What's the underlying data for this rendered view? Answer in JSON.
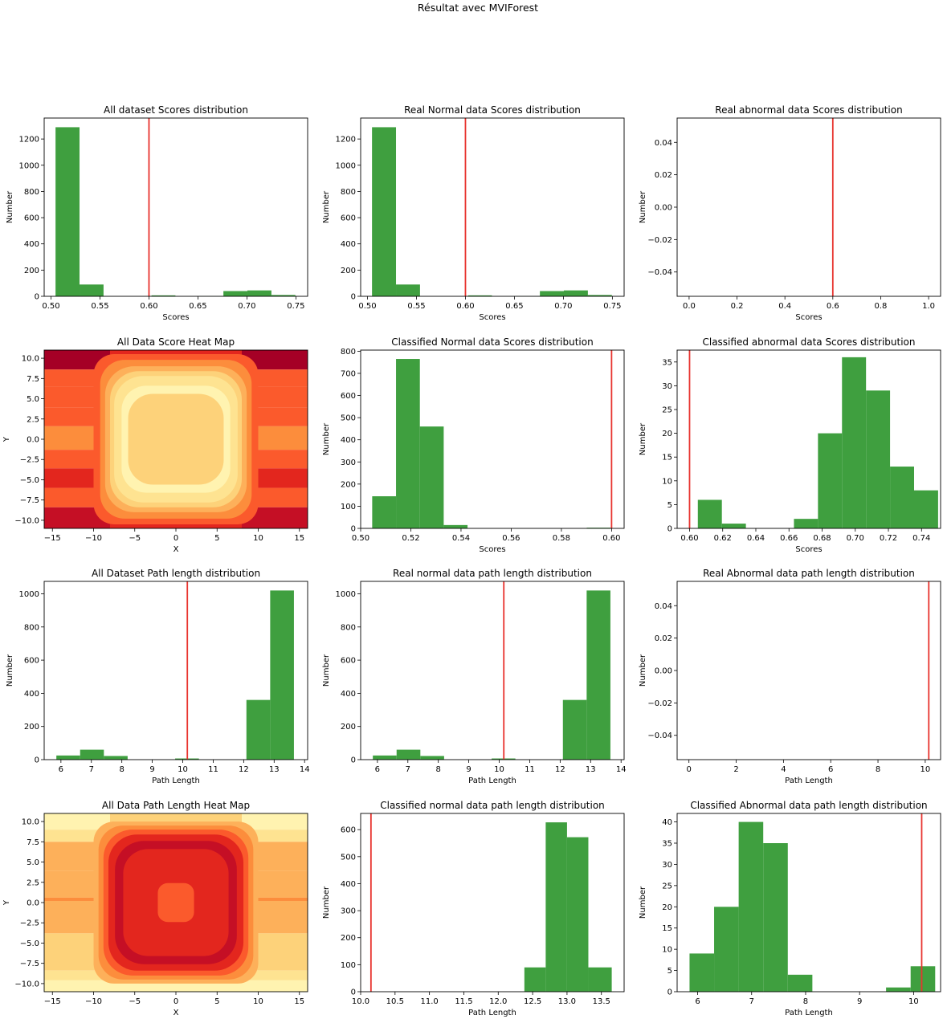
{
  "figure": {
    "suptitle": "Résultat avec MVIForest"
  },
  "colors": {
    "bar": "#3f9f3f",
    "threshold": "#e8332e",
    "heat_low": "#fff9c4",
    "heat_high": "#a50026"
  },
  "chart_data": [
    {
      "id": "all-scores",
      "type": "bar",
      "title": "All dataset Scores distribution",
      "xlabel": "Scores",
      "ylabel": "Number",
      "xlim": [
        0.493,
        0.762
      ],
      "ylim": [
        0,
        1360
      ],
      "xticks": [
        0.5,
        0.55,
        0.6,
        0.65,
        0.7,
        0.75
      ],
      "xtick_labels": [
        "0.50",
        "0.55",
        "0.60",
        "0.65",
        "0.70",
        "0.75"
      ],
      "yticks": [
        0,
        200,
        400,
        600,
        800,
        1000,
        1200
      ],
      "ytick_labels": [
        "0",
        "200",
        "400",
        "600",
        "800",
        "1000",
        "1200"
      ],
      "bins": [
        [
          0.5046,
          0.5291,
          1290
        ],
        [
          0.5291,
          0.5536,
          90
        ],
        [
          0.5536,
          0.5781,
          0
        ],
        [
          0.5781,
          0.6026,
          0
        ],
        [
          0.6026,
          0.627,
          7
        ],
        [
          0.627,
          0.6515,
          0
        ],
        [
          0.6515,
          0.676,
          2
        ],
        [
          0.676,
          0.7005,
          40
        ],
        [
          0.7005,
          0.725,
          45
        ],
        [
          0.725,
          0.7495,
          10
        ]
      ],
      "threshold": 0.6
    },
    {
      "id": "real-normal-scores",
      "type": "bar",
      "title": "Real Normal data Scores distribution",
      "xlabel": "Scores",
      "ylabel": "Number",
      "xlim": [
        0.493,
        0.762
      ],
      "ylim": [
        0,
        1360
      ],
      "xticks": [
        0.5,
        0.55,
        0.6,
        0.65,
        0.7,
        0.75
      ],
      "xtick_labels": [
        "0.50",
        "0.55",
        "0.60",
        "0.65",
        "0.70",
        "0.75"
      ],
      "yticks": [
        0,
        200,
        400,
        600,
        800,
        1000,
        1200
      ],
      "ytick_labels": [
        "0",
        "200",
        "400",
        "600",
        "800",
        "1000",
        "1200"
      ],
      "bins": [
        [
          0.5046,
          0.5291,
          1290
        ],
        [
          0.5291,
          0.5536,
          90
        ],
        [
          0.5536,
          0.5781,
          0
        ],
        [
          0.5781,
          0.6026,
          0
        ],
        [
          0.6026,
          0.627,
          7
        ],
        [
          0.627,
          0.6515,
          0
        ],
        [
          0.6515,
          0.676,
          2
        ],
        [
          0.676,
          0.7005,
          40
        ],
        [
          0.7005,
          0.725,
          45
        ],
        [
          0.725,
          0.7495,
          10
        ]
      ],
      "threshold": 0.6
    },
    {
      "id": "real-abnormal-scores",
      "type": "bar",
      "title": "Real abnormal data Scores distribution",
      "xlabel": "Scores",
      "ylabel": "Number",
      "xlim": [
        -0.05,
        1.05
      ],
      "ylim": [
        -0.055,
        0.055
      ],
      "xticks": [
        0.0,
        0.2,
        0.4,
        0.6,
        0.8,
        1.0
      ],
      "xtick_labels": [
        "0.0",
        "0.2",
        "0.4",
        "0.6",
        "0.8",
        "1.0"
      ],
      "yticks": [
        -0.04,
        -0.02,
        0.0,
        0.02,
        0.04
      ],
      "ytick_labels": [
        "−0.04",
        "−0.02",
        "0.00",
        "0.02",
        "0.04"
      ],
      "bins": [],
      "threshold": 0.6
    },
    {
      "id": "all-score-heatmap",
      "type": "heatmap",
      "title": "All Data Score Heat Map",
      "xlabel": "X",
      "ylabel": "Y",
      "xlim": [
        -16,
        16
      ],
      "ylim": [
        -11,
        11
      ],
      "xticks": [
        -15,
        -10,
        -5,
        0,
        5,
        10,
        15
      ],
      "xtick_labels": [
        "−15",
        "−10",
        "−5",
        "0",
        "5",
        "10",
        "15"
      ],
      "yticks": [
        -10,
        -7.5,
        -5,
        -2.5,
        0,
        2.5,
        5,
        7.5,
        10
      ],
      "ytick_labels": [
        "−10.0",
        "−7.5",
        "−5.0",
        "−2.5",
        "0.0",
        "2.5",
        "5.0",
        "7.5",
        "10.0"
      ],
      "palette": [
        "#fff3b0",
        "#fee391",
        "#fdd27a",
        "#fdb05a",
        "#fc8d3c",
        "#fb5a2c",
        "#e3261e",
        "#c50f25",
        "#a50026"
      ],
      "outer_bands": [
        {
          "y0": 8.6,
          "y1": 11,
          "outer": 8,
          "mid": 6
        },
        {
          "y0": 6.5,
          "y1": 8.6,
          "outer": 5,
          "mid": 5
        },
        {
          "y0": 3.9,
          "y1": 6.5,
          "outer": 5,
          "mid": 4
        },
        {
          "y0": 1.6,
          "y1": 3.9,
          "outer": 5,
          "mid": 5
        },
        {
          "y0": -1.3,
          "y1": 1.6,
          "outer": 4,
          "mid": 4
        },
        {
          "y0": -3.6,
          "y1": -1.3,
          "outer": 5,
          "mid": 5
        },
        {
          "y0": -6.0,
          "y1": -3.6,
          "outer": 6,
          "mid": 6
        },
        {
          "y0": -8.4,
          "y1": -6.0,
          "outer": 5,
          "mid": 5
        },
        {
          "y0": -11,
          "y1": -8.4,
          "outer": 7,
          "mid": 6
        }
      ],
      "center_rings": [
        {
          "hw": 10.0,
          "hh": 10.5,
          "r": 2.5,
          "level": 5
        },
        {
          "hw": 9.2,
          "hh": 9.8,
          "r": 3.0,
          "level": 4
        },
        {
          "hw": 8.6,
          "hh": 9.0,
          "r": 3.5,
          "level": 3
        },
        {
          "hw": 8.0,
          "hh": 8.4,
          "r": 3.5,
          "level": 2
        },
        {
          "hw": 7.5,
          "hh": 7.8,
          "r": 3.5,
          "level": 1
        },
        {
          "hw": 6.6,
          "hh": 6.6,
          "r": 3.0,
          "level": 0
        },
        {
          "hw": 5.8,
          "hh": 5.6,
          "r": 3.0,
          "level": 2
        }
      ]
    },
    {
      "id": "classified-normal-scores",
      "type": "bar",
      "title": "Classified Normal data Scores distribution",
      "xlabel": "Scores",
      "ylabel": "Number",
      "xlim": [
        0.5,
        0.605
      ],
      "ylim": [
        0,
        805
      ],
      "xticks": [
        0.5,
        0.52,
        0.54,
        0.56,
        0.58,
        0.6
      ],
      "xtick_labels": [
        "0.50",
        "0.52",
        "0.54",
        "0.56",
        "0.58",
        "0.60"
      ],
      "yticks": [
        0,
        100,
        200,
        300,
        400,
        500,
        600,
        700,
        800
      ],
      "ytick_labels": [
        "0",
        "100",
        "200",
        "300",
        "400",
        "500",
        "600",
        "700",
        "800"
      ],
      "bins": [
        [
          0.5046,
          0.5141,
          145
        ],
        [
          0.5141,
          0.5236,
          765
        ],
        [
          0.5236,
          0.5331,
          460
        ],
        [
          0.5331,
          0.5426,
          15
        ],
        [
          0.5426,
          0.5521,
          0
        ],
        [
          0.5521,
          0.5616,
          0
        ],
        [
          0.5616,
          0.5711,
          0
        ],
        [
          0.5711,
          0.5806,
          0
        ],
        [
          0.5806,
          0.5901,
          0
        ],
        [
          0.5901,
          0.5996,
          3
        ]
      ],
      "threshold": 0.6
    },
    {
      "id": "classified-abnormal-scores",
      "type": "bar",
      "title": "Classified abnormal data Scores distribution",
      "xlabel": "Scores",
      "ylabel": "Number",
      "xlim": [
        0.5925,
        0.7515
      ],
      "ylim": [
        0,
        37.5
      ],
      "xticks": [
        0.6,
        0.62,
        0.64,
        0.66,
        0.68,
        0.7,
        0.72,
        0.74
      ],
      "xtick_labels": [
        "0.60",
        "0.62",
        "0.64",
        "0.66",
        "0.68",
        "0.70",
        "0.72",
        "0.74"
      ],
      "yticks": [
        0,
        5,
        10,
        15,
        20,
        25,
        30,
        35
      ],
      "ytick_labels": [
        "0",
        "5",
        "10",
        "15",
        "20",
        "25",
        "30",
        "35"
      ],
      "bins": [
        [
          0.605,
          0.6195,
          6
        ],
        [
          0.6195,
          0.634,
          1
        ],
        [
          0.634,
          0.6485,
          0
        ],
        [
          0.6485,
          0.663,
          0
        ],
        [
          0.663,
          0.6775,
          2
        ],
        [
          0.6775,
          0.692,
          20
        ],
        [
          0.692,
          0.7065,
          36
        ],
        [
          0.7065,
          0.721,
          29
        ],
        [
          0.721,
          0.7355,
          13
        ],
        [
          0.7355,
          0.75,
          8
        ]
      ],
      "threshold": 0.6
    },
    {
      "id": "all-path-length",
      "type": "bar",
      "title": "All Dataset Path length distribution",
      "xlabel": "Path Length",
      "ylabel": "Number",
      "xlim": [
        5.45,
        14.1
      ],
      "ylim": [
        0,
        1075
      ],
      "xticks": [
        6,
        7,
        8,
        9,
        10,
        11,
        12,
        13,
        14
      ],
      "xtick_labels": [
        "6",
        "7",
        "8",
        "9",
        "10",
        "11",
        "12",
        "13",
        "14"
      ],
      "yticks": [
        0,
        200,
        400,
        600,
        800,
        1000
      ],
      "ytick_labels": [
        "0",
        "200",
        "400",
        "600",
        "800",
        "1000"
      ],
      "bins": [
        [
          5.85,
          6.63,
          25
        ],
        [
          6.63,
          7.41,
          60
        ],
        [
          7.41,
          8.19,
          22
        ],
        [
          8.19,
          8.97,
          0
        ],
        [
          8.97,
          9.75,
          0
        ],
        [
          9.75,
          10.53,
          7
        ],
        [
          10.53,
          11.31,
          0
        ],
        [
          11.31,
          12.09,
          0
        ],
        [
          12.09,
          12.87,
          360
        ],
        [
          12.87,
          13.65,
          1020
        ]
      ],
      "threshold": 10.15
    },
    {
      "id": "real-normal-path-length",
      "type": "bar",
      "title": "Real normal data path length distribution",
      "xlabel": "Path Length",
      "ylabel": "Number",
      "xlim": [
        5.45,
        14.1
      ],
      "ylim": [
        0,
        1075
      ],
      "xticks": [
        6,
        7,
        8,
        9,
        10,
        11,
        12,
        13,
        14
      ],
      "xtick_labels": [
        "6",
        "7",
        "8",
        "9",
        "10",
        "11",
        "12",
        "13",
        "14"
      ],
      "yticks": [
        0,
        200,
        400,
        600,
        800,
        1000
      ],
      "ytick_labels": [
        "0",
        "200",
        "400",
        "600",
        "800",
        "1000"
      ],
      "bins": [
        [
          5.85,
          6.63,
          25
        ],
        [
          6.63,
          7.41,
          60
        ],
        [
          7.41,
          8.19,
          22
        ],
        [
          8.19,
          8.97,
          0
        ],
        [
          8.97,
          9.75,
          0
        ],
        [
          9.75,
          10.53,
          7
        ],
        [
          10.53,
          11.31,
          0
        ],
        [
          11.31,
          12.09,
          0
        ],
        [
          12.09,
          12.87,
          360
        ],
        [
          12.87,
          13.65,
          1020
        ]
      ],
      "threshold": 10.15
    },
    {
      "id": "real-abnormal-path-length",
      "type": "bar",
      "title": "Real Abnormal data path length distribution",
      "xlabel": "Path Length",
      "ylabel": "Number",
      "xlim": [
        -0.5,
        10.65
      ],
      "ylim": [
        -0.055,
        0.055
      ],
      "xticks": [
        0,
        2,
        4,
        6,
        8,
        10
      ],
      "xtick_labels": [
        "0",
        "2",
        "4",
        "6",
        "8",
        "10"
      ],
      "yticks": [
        -0.04,
        -0.02,
        0.0,
        0.02,
        0.04
      ],
      "ytick_labels": [
        "−0.04",
        "−0.02",
        "0.00",
        "0.02",
        "0.04"
      ],
      "bins": [],
      "threshold": 10.15
    },
    {
      "id": "all-path-heatmap",
      "type": "heatmap",
      "title": "All Data Path Length Heat Map",
      "xlabel": "X",
      "ylabel": "Y",
      "xlim": [
        -16,
        16
      ],
      "ylim": [
        -11,
        11
      ],
      "xticks": [
        -15,
        -10,
        -5,
        0,
        5,
        10,
        15
      ],
      "xtick_labels": [
        "−15",
        "−10",
        "−5",
        "0",
        "5",
        "10",
        "15"
      ],
      "yticks": [
        -10,
        -7.5,
        -5,
        -2.5,
        0,
        2.5,
        5,
        7.5,
        10
      ],
      "ytick_labels": [
        "−10.0",
        "−7.5",
        "−5.0",
        "−2.5",
        "0.0",
        "2.5",
        "5.0",
        "7.5",
        "10.0"
      ],
      "palette": [
        "#fff3b0",
        "#fee391",
        "#fdd27a",
        "#fdb05a",
        "#fc8d3c",
        "#fb5a2c",
        "#e3261e",
        "#c50f25",
        "#a50026"
      ],
      "outer_bands": [
        {
          "y0": 9.0,
          "y1": 11,
          "outer": 0,
          "mid": 2
        },
        {
          "y0": 7.5,
          "y1": 9.0,
          "outer": 1,
          "mid": 3
        },
        {
          "y0": 3.9,
          "y1": 7.5,
          "outer": 3,
          "mid": 3
        },
        {
          "y0": 0.6,
          "y1": 3.9,
          "outer": 3,
          "mid": 3
        },
        {
          "y0": 0.2,
          "y1": 0.6,
          "outer": 4,
          "mid": 4
        },
        {
          "y0": -3.8,
          "y1": 0.2,
          "outer": 3,
          "mid": 3
        },
        {
          "y0": -8.4,
          "y1": -3.8,
          "outer": 2,
          "mid": 2
        },
        {
          "y0": -9.6,
          "y1": -8.4,
          "outer": 1,
          "mid": 1
        },
        {
          "y0": -11,
          "y1": -9.6,
          "outer": 0,
          "mid": 0
        }
      ],
      "center_rings": [
        {
          "hw": 10.0,
          "hh": 10.0,
          "r": 2.5,
          "level": 3
        },
        {
          "hw": 9.4,
          "hh": 9.5,
          "r": 3.0,
          "level": 4
        },
        {
          "hw": 8.8,
          "hh": 9.0,
          "r": 3.5,
          "level": 5
        },
        {
          "hw": 8.2,
          "hh": 8.4,
          "r": 3.5,
          "level": 6
        },
        {
          "hw": 7.4,
          "hh": 7.6,
          "r": 3.5,
          "level": 7
        },
        {
          "hw": 6.4,
          "hh": 6.6,
          "r": 3.0,
          "level": 6
        },
        {
          "hw": 2.2,
          "hh": 2.4,
          "r": 1.2,
          "level": 5
        }
      ]
    },
    {
      "id": "classified-normal-path-length",
      "type": "bar",
      "title": "Classified normal data path length distribution",
      "xlabel": "Path Length",
      "ylabel": "Number",
      "xlim": [
        10.0,
        13.83
      ],
      "ylim": [
        0,
        660
      ],
      "xticks": [
        10.0,
        10.5,
        11.0,
        11.5,
        12.0,
        12.5,
        13.0,
        13.5
      ],
      "xtick_labels": [
        "10.0",
        "10.5",
        "11.0",
        "11.5",
        "12.0",
        "12.5",
        "13.0",
        "13.5"
      ],
      "yticks": [
        0,
        100,
        200,
        300,
        400,
        500,
        600
      ],
      "ytick_labels": [
        "0",
        "100",
        "200",
        "300",
        "400",
        "500",
        "600"
      ],
      "bins": [
        [
          12.38,
          12.69,
          90
        ],
        [
          12.69,
          13.0,
          627
        ],
        [
          13.0,
          13.31,
          572
        ],
        [
          13.31,
          13.65,
          90
        ]
      ],
      "threshold": 10.15
    },
    {
      "id": "classified-abnormal-path-length",
      "type": "bar",
      "title": "Classified Abnormal data path length distribution",
      "xlabel": "Path Length",
      "ylabel": "Number",
      "xlim": [
        5.62,
        10.5
      ],
      "ylim": [
        0,
        42
      ],
      "xticks": [
        6,
        7,
        8,
        9,
        10
      ],
      "xtick_labels": [
        "6",
        "7",
        "8",
        "9",
        "10"
      ],
      "yticks": [
        0,
        5,
        10,
        15,
        20,
        25,
        30,
        35,
        40
      ],
      "ytick_labels": [
        "0",
        "5",
        "10",
        "15",
        "20",
        "25",
        "30",
        "35",
        "40"
      ],
      "bins": [
        [
          5.85,
          6.305,
          9
        ],
        [
          6.305,
          6.76,
          20
        ],
        [
          6.76,
          7.215,
          40
        ],
        [
          7.215,
          7.67,
          35
        ],
        [
          7.67,
          8.125,
          4
        ],
        [
          8.125,
          8.58,
          0
        ],
        [
          8.58,
          9.035,
          0
        ],
        [
          9.035,
          9.49,
          0
        ],
        [
          9.49,
          9.945,
          1
        ],
        [
          9.945,
          10.4,
          6
        ]
      ],
      "threshold": 10.15
    }
  ]
}
